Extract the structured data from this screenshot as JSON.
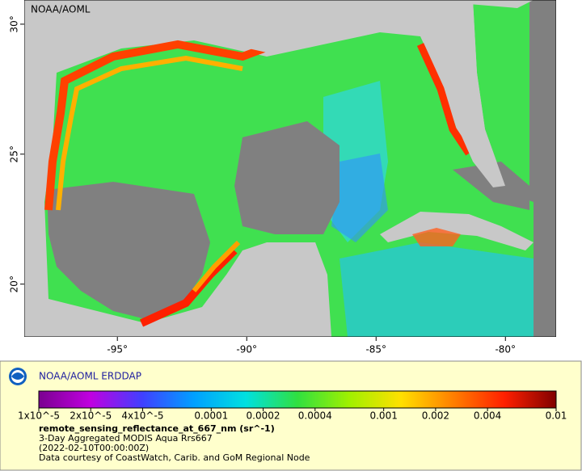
{
  "map": {
    "source_label": "NOAA/AOML",
    "xlim": [
      -98.6,
      -78.04
    ],
    "ylim": [
      17.97,
      30.93
    ],
    "xticks": [
      {
        "value": -95,
        "label": "-95°"
      },
      {
        "value": -90,
        "label": "-90°"
      },
      {
        "value": -85,
        "label": "-85°"
      },
      {
        "value": -80,
        "label": "-80°"
      }
    ],
    "yticks": [
      {
        "value": 20,
        "label": "20°"
      },
      {
        "value": 25,
        "label": "25°"
      },
      {
        "value": 30,
        "label": "30°"
      }
    ]
  },
  "legend": {
    "title": "NOAA/AOML ERDDAP",
    "log_scale": true,
    "lim": [
      1e-05,
      0.01
    ],
    "colormap": [
      "#7a0090",
      "#c000e0",
      "#4040ff",
      "#00a0ff",
      "#00e0e0",
      "#30e040",
      "#a0f000",
      "#ffe000",
      "#ff8000",
      "#ff2000",
      "#800000"
    ],
    "ticks": [
      {
        "value": 1e-05,
        "label": "1x10^-5"
      },
      {
        "value": 2e-05,
        "label": "2x10^-5"
      },
      {
        "value": 4e-05,
        "label": "4x10^-5"
      },
      0.0001,
      0.0002,
      0.0004,
      0.001,
      0.002,
      0.004,
      0.01
    ],
    "variable": "remote_sensing_reflectance_at_667_nm (sr^-1)",
    "lines": [
      "3-Day Aggregated MODIS Aqua Rrs667",
      "(2022-02-10T00:00:00Z)",
      "Data courtesy of CoastWatch, Carib. and GoM Regional Node"
    ]
  }
}
